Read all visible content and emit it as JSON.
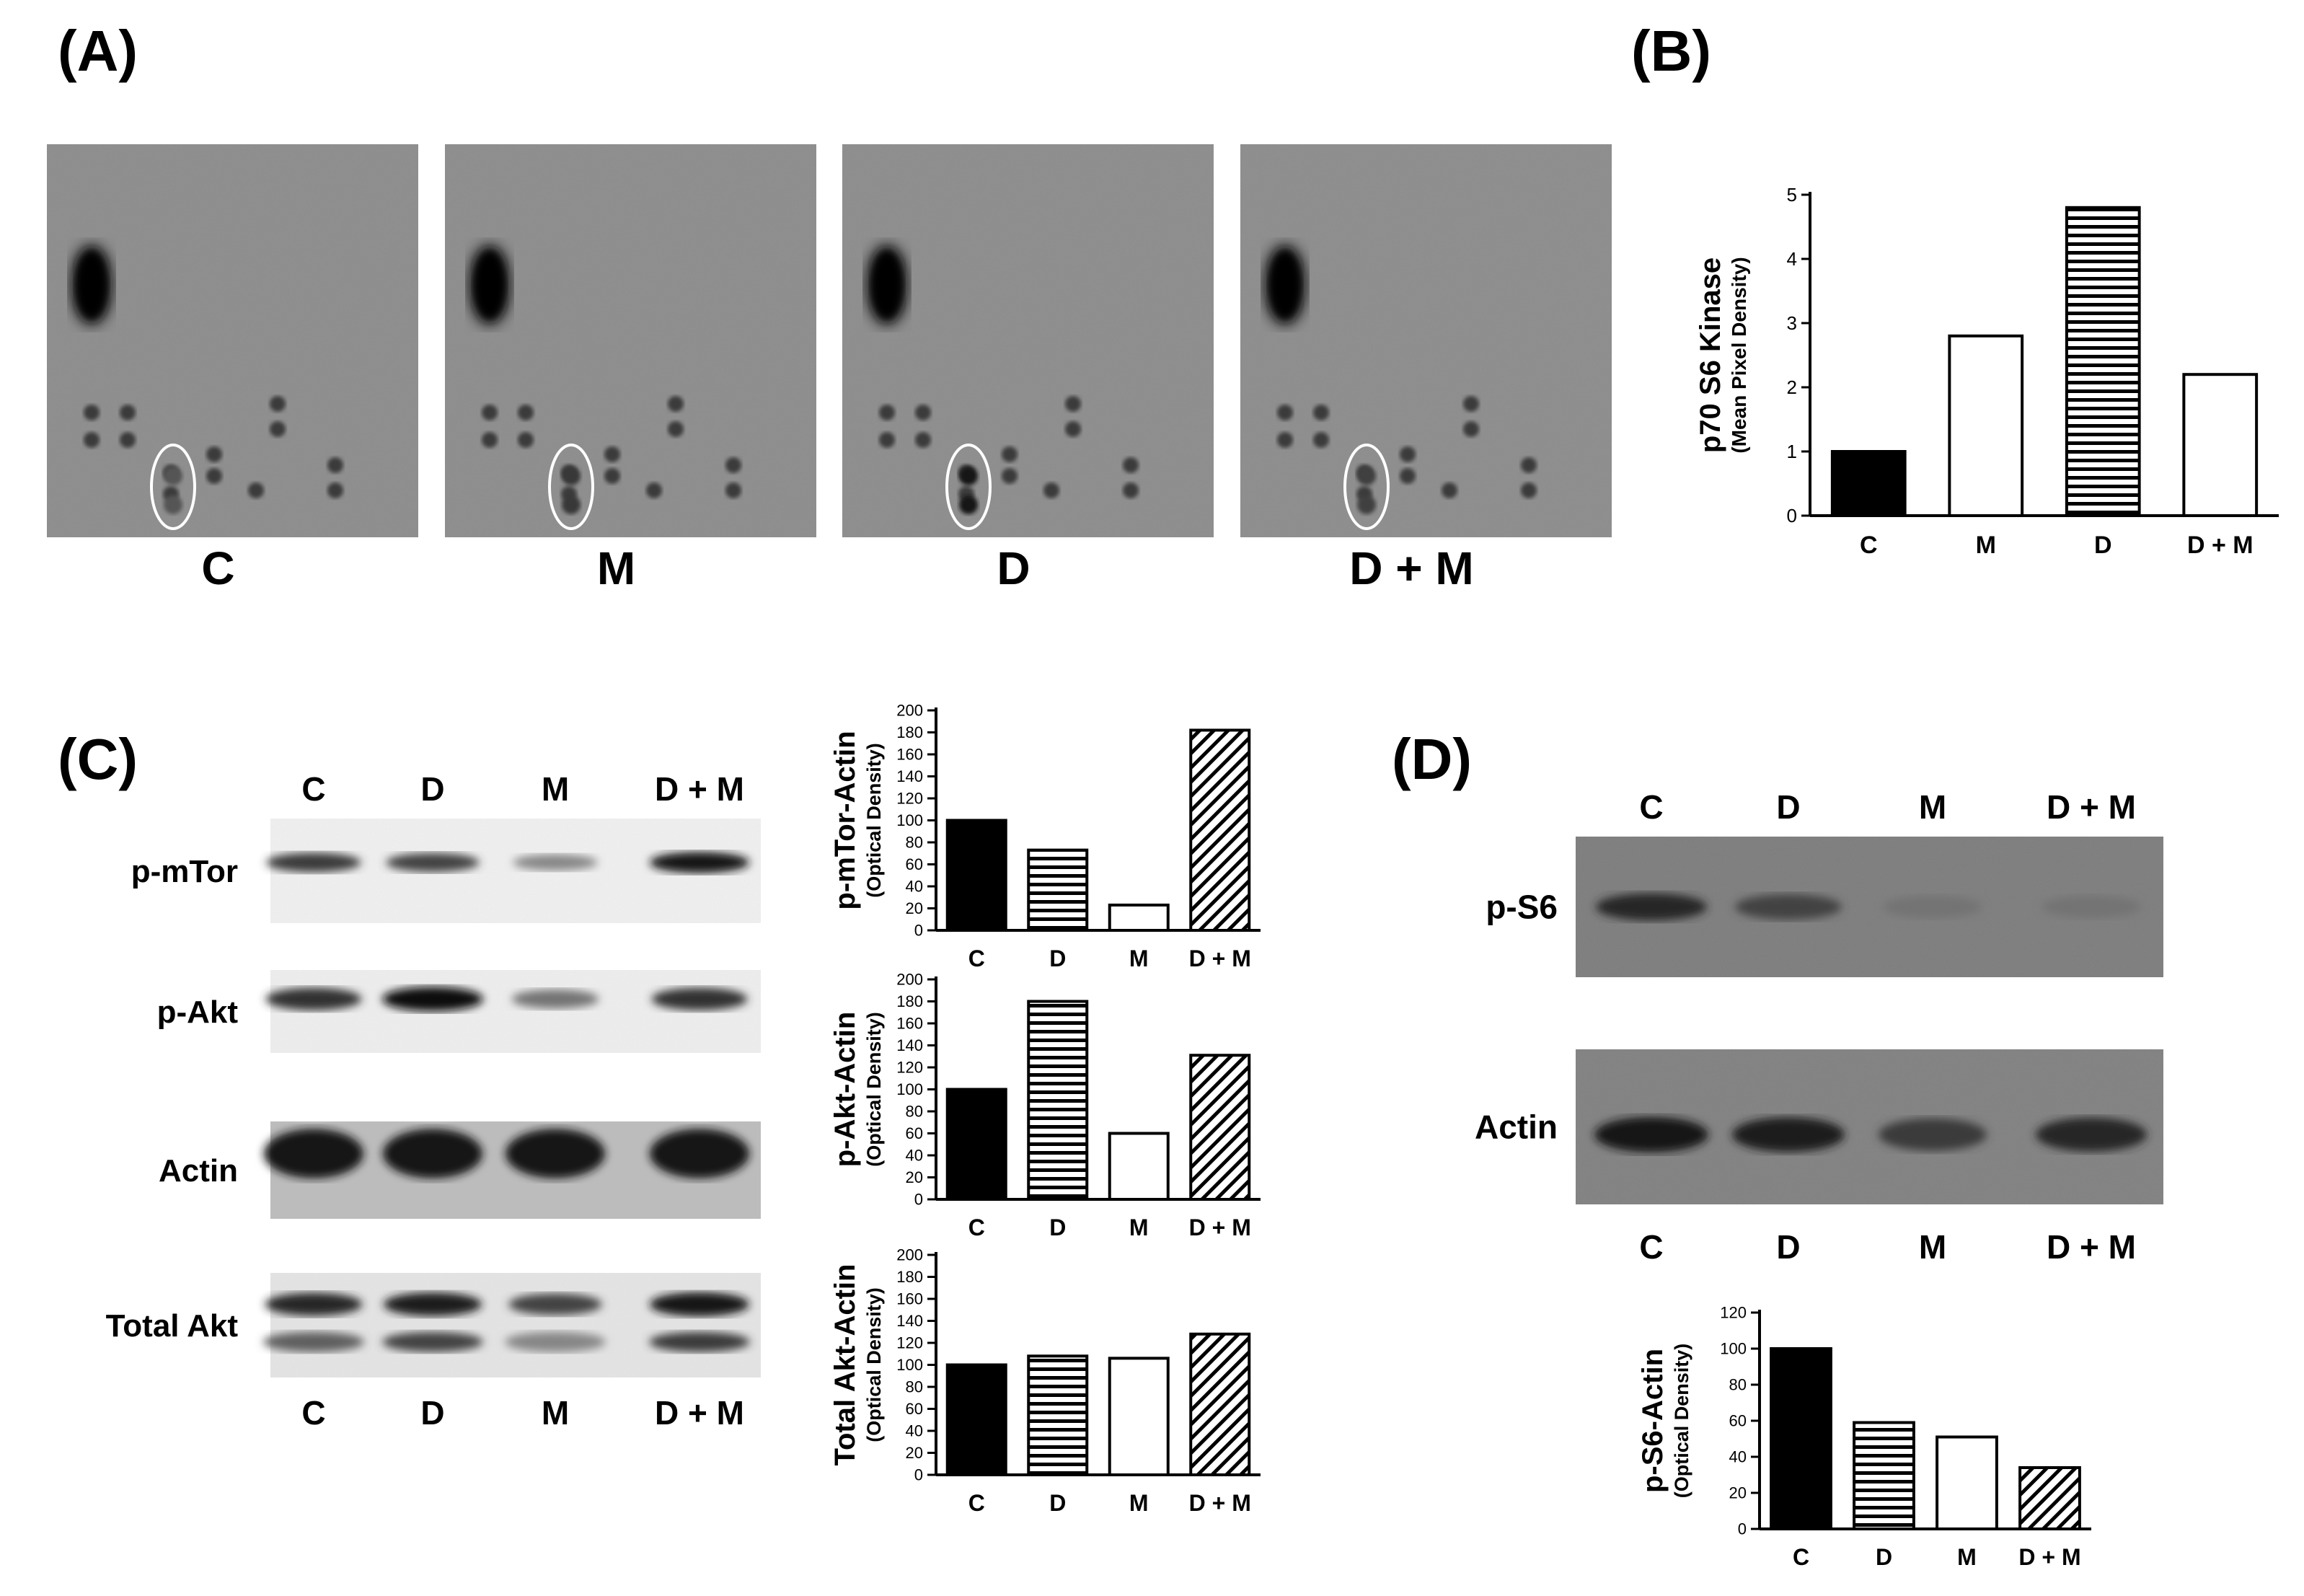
{
  "panels": {
    "A": {
      "label": "(A)",
      "arrays": [
        {
          "label": "C",
          "circled_intensity": 0.25
        },
        {
          "label": "M",
          "circled_intensity": 0.55
        },
        {
          "label": "D",
          "circled_intensity": 0.85
        },
        {
          "label": "D + M",
          "circled_intensity": 0.45
        }
      ]
    },
    "B": {
      "label": "(B)"
    },
    "C": {
      "label": "(C)",
      "top_lanes": [
        "C",
        "D",
        "M",
        "D + M"
      ],
      "bottom_lanes": [
        "C",
        "D",
        "M",
        "D + M"
      ],
      "blot_rows": [
        {
          "label": "p-mTor",
          "intensities": [
            0.75,
            0.7,
            0.35,
            0.95
          ]
        },
        {
          "label": "p-Akt",
          "intensities": [
            0.8,
            1.0,
            0.45,
            0.8
          ]
        },
        {
          "label": "Actin",
          "intensities": [
            0.95,
            0.95,
            0.95,
            0.95
          ]
        },
        {
          "label": "Total Akt",
          "intensities": [
            0.85,
            0.9,
            0.7,
            0.95
          ]
        }
      ]
    },
    "D": {
      "label": "(D)",
      "top_lanes": [
        "C",
        "D",
        "M",
        "D + M"
      ],
      "bottom_lanes": [
        "C",
        "D",
        "M",
        "D + M"
      ],
      "blot_rows": [
        {
          "label": "p-S6",
          "intensities": [
            0.85,
            0.7,
            0.45,
            0.45
          ]
        },
        {
          "label": "Actin",
          "intensities": [
            0.95,
            0.9,
            0.75,
            0.85
          ]
        }
      ]
    }
  },
  "chart_data": [
    {
      "type": "bar",
      "id": "B",
      "categories": [
        "C",
        "M",
        "D",
        "D + M"
      ],
      "values": [
        1.0,
        2.8,
        4.8,
        2.2
      ],
      "ylabel": "p70 S6 Kinase",
      "ylabel_sub": "(Mean Pixel Density)",
      "ylim": [
        0,
        5
      ],
      "yticks": [
        0,
        1,
        2,
        3,
        4,
        5
      ],
      "patterns": [
        "solid",
        "open",
        "hstripe",
        "open"
      ]
    },
    {
      "type": "bar",
      "id": "C1",
      "categories": [
        "C",
        "D",
        "M",
        "D + M"
      ],
      "values": [
        100,
        73,
        23,
        182
      ],
      "ylabel": "p-mTor-Actin",
      "ylabel_sub": "(Optical Density)",
      "ylim": [
        0,
        200
      ],
      "yticks": [
        0,
        20,
        40,
        60,
        80,
        100,
        120,
        140,
        160,
        180,
        200
      ],
      "patterns": [
        "solid",
        "hstripe",
        "open",
        "diag"
      ]
    },
    {
      "type": "bar",
      "id": "C2",
      "categories": [
        "C",
        "D",
        "M",
        "D + M"
      ],
      "values": [
        100,
        180,
        60,
        131
      ],
      "ylabel": "p-Akt-Actin",
      "ylabel_sub": "(Optical Density)",
      "ylim": [
        0,
        200
      ],
      "yticks": [
        0,
        20,
        40,
        60,
        80,
        100,
        120,
        140,
        160,
        180,
        200
      ],
      "patterns": [
        "solid",
        "hstripe",
        "open",
        "diag"
      ]
    },
    {
      "type": "bar",
      "id": "C3",
      "categories": [
        "C",
        "D",
        "M",
        "D + M"
      ],
      "values": [
        100,
        108,
        106,
        128
      ],
      "ylabel": "Total Akt-Actin",
      "ylabel_sub": "(Optical Density)",
      "ylim": [
        0,
        200
      ],
      "yticks": [
        0,
        20,
        40,
        60,
        80,
        100,
        120,
        140,
        160,
        180,
        200
      ],
      "patterns": [
        "solid",
        "hstripe",
        "open",
        "diag"
      ]
    },
    {
      "type": "bar",
      "id": "D1",
      "categories": [
        "C",
        "D",
        "M",
        "D + M"
      ],
      "values": [
        100,
        59,
        51,
        34
      ],
      "ylabel": "p-S6-Actin",
      "ylabel_sub": "(Optical Density)",
      "ylim": [
        0,
        120
      ],
      "yticks": [
        0,
        20,
        40,
        60,
        80,
        100,
        120
      ],
      "patterns": [
        "solid",
        "hstripe",
        "open",
        "diag"
      ]
    }
  ]
}
